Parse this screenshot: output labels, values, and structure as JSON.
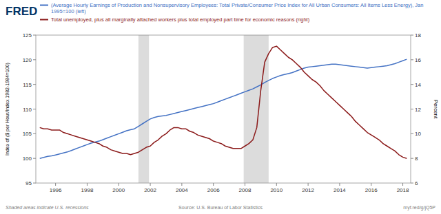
{
  "chart_data": {
    "type": "line",
    "logo": "FRED",
    "ylabel": "Index of ($ per Hour/Index 1982-1984=100)",
    "y2label": "Percent",
    "source": "Source: U.S. Bureau of Labor Statistics",
    "note": "Shaded areas indicate U.S. recessions",
    "link": "myf.red/g/jQ5P",
    "background": "#FFFFFF",
    "legend": "top",
    "grid": false,
    "shade_color": "#DCDCDC",
    "shaded_spans": [
      [
        2001.25,
        2001.92
      ],
      [
        2007.92,
        2009.5
      ]
    ],
    "xlim": [
      1994.75,
      2018.5
    ],
    "xticks": [
      1996,
      1998,
      2000,
      2002,
      2004,
      2006,
      2008,
      2010,
      2012,
      2014,
      2016,
      2018
    ],
    "ylim": [
      95,
      125
    ],
    "yticks": [
      95,
      100,
      105,
      110,
      115,
      120,
      125
    ],
    "y2lim": [
      6,
      18
    ],
    "y2ticks": [
      6,
      8,
      10,
      12,
      14,
      16,
      18
    ],
    "x": [
      1995.0,
      1995.25,
      1995.5,
      1995.75,
      1996.0,
      1996.25,
      1996.5,
      1996.75,
      1997.0,
      1997.25,
      1997.5,
      1997.75,
      1998.0,
      1998.25,
      1998.5,
      1998.75,
      1999.0,
      1999.25,
      1999.5,
      1999.75,
      2000.0,
      2000.25,
      2000.5,
      2000.75,
      2001.0,
      2001.25,
      2001.5,
      2001.75,
      2002.0,
      2002.25,
      2002.5,
      2002.75,
      2003.0,
      2003.25,
      2003.5,
      2003.75,
      2004.0,
      2004.25,
      2004.5,
      2004.75,
      2005.0,
      2005.25,
      2005.5,
      2005.75,
      2006.0,
      2006.25,
      2006.5,
      2006.75,
      2007.0,
      2007.25,
      2007.5,
      2007.75,
      2008.0,
      2008.25,
      2008.5,
      2008.75,
      2009.0,
      2009.25,
      2009.5,
      2009.75,
      2010.0,
      2010.25,
      2010.5,
      2010.75,
      2011.0,
      2011.25,
      2011.5,
      2011.75,
      2012.0,
      2012.25,
      2012.5,
      2012.75,
      2013.0,
      2013.25,
      2013.5,
      2013.75,
      2014.0,
      2014.25,
      2014.5,
      2014.75,
      2015.0,
      2015.25,
      2015.5,
      2015.75,
      2016.0,
      2016.25,
      2016.5,
      2016.75,
      2017.0,
      2017.25,
      2017.5,
      2017.75,
      2018.0,
      2018.25
    ],
    "series": [
      {
        "name": "(Average Hourly Earnings of Production and Nonsupervisory Employees: Total Private/Consumer Price Index for All Urban Consumers: All Items Less Energy), Jan 1995=100 (left)",
        "color": "#4472C4",
        "axis": "y",
        "values": [
          100.0,
          100.2,
          100.4,
          100.5,
          100.7,
          100.9,
          101.1,
          101.3,
          101.6,
          101.9,
          102.2,
          102.5,
          102.8,
          103.1,
          103.3,
          103.5,
          103.8,
          104.1,
          104.4,
          104.7,
          105.0,
          105.3,
          105.6,
          105.8,
          106.0,
          106.5,
          107.0,
          107.5,
          108.0,
          108.3,
          108.5,
          108.6,
          108.7,
          108.9,
          109.1,
          109.3,
          109.5,
          109.7,
          109.9,
          110.1,
          110.3,
          110.5,
          110.7,
          110.9,
          111.1,
          111.4,
          111.7,
          112.0,
          112.3,
          112.6,
          112.9,
          113.2,
          113.5,
          113.8,
          114.1,
          114.5,
          114.9,
          115.4,
          115.8,
          116.2,
          116.5,
          116.8,
          117.0,
          117.2,
          117.4,
          117.7,
          118.0,
          118.3,
          118.5,
          118.6,
          118.7,
          118.8,
          118.9,
          119.0,
          119.1,
          119.1,
          119.0,
          118.9,
          118.8,
          118.7,
          118.6,
          118.5,
          118.4,
          118.3,
          118.4,
          118.5,
          118.6,
          118.7,
          118.8,
          119.0,
          119.2,
          119.5,
          119.8,
          120.1
        ]
      },
      {
        "name": "Total unemployed, plus all marginally attached workers plus total employed part time for economic reasons (right)",
        "color": "#8B1A1A",
        "axis": "y2",
        "values": [
          10.5,
          10.4,
          10.4,
          10.3,
          10.3,
          10.3,
          10.1,
          10.0,
          9.9,
          9.8,
          9.7,
          9.6,
          9.5,
          9.4,
          9.3,
          9.2,
          9.0,
          8.9,
          8.7,
          8.6,
          8.5,
          8.4,
          8.4,
          8.3,
          8.4,
          8.5,
          8.7,
          8.9,
          9.0,
          9.3,
          9.5,
          9.8,
          10.0,
          10.3,
          10.5,
          10.5,
          10.4,
          10.4,
          10.2,
          10.1,
          9.9,
          9.8,
          9.7,
          9.6,
          9.4,
          9.3,
          9.2,
          9.0,
          8.9,
          8.8,
          8.8,
          8.8,
          9.0,
          9.2,
          9.5,
          10.5,
          13.5,
          15.8,
          16.5,
          17.0,
          17.1,
          16.8,
          16.5,
          16.2,
          16.0,
          15.7,
          15.4,
          15.0,
          14.7,
          14.4,
          14.2,
          13.9,
          13.5,
          13.2,
          12.9,
          12.6,
          12.3,
          12.0,
          11.7,
          11.4,
          11.0,
          10.7,
          10.4,
          10.1,
          9.9,
          9.7,
          9.5,
          9.2,
          9.0,
          8.8,
          8.6,
          8.3,
          8.1,
          8.0
        ]
      }
    ]
  }
}
